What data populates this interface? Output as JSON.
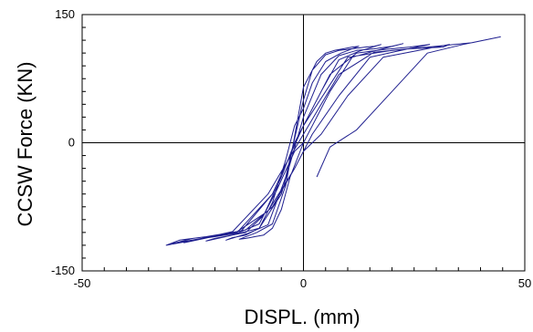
{
  "chart_data": {
    "type": "line",
    "xlabel": "DISPL. (mm)",
    "ylabel": "CCSW Force (KN)",
    "xlim": [
      -50,
      50
    ],
    "ylim": [
      -150,
      150
    ],
    "x_ticks": [
      -50,
      0,
      50
    ],
    "y_ticks": [
      -150,
      0,
      150
    ],
    "x_tick_labels": [
      "-50",
      "0",
      "50"
    ],
    "y_tick_labels": [
      "-150",
      "0",
      "150"
    ],
    "grid": false,
    "zero_lines": true,
    "legend": "none",
    "line_color": "#1f1f8f",
    "series": [
      {
        "x": [
          0,
          -3,
          -5,
          -7,
          -9,
          -11,
          -13,
          -14.5,
          -10.5,
          -7,
          -4,
          0,
          3,
          5,
          7,
          9,
          11,
          12.5,
          8.5,
          5,
          2,
          0,
          -2,
          -4,
          -7,
          -10,
          -13,
          -16,
          -17.5,
          -12.5,
          -8,
          -4,
          0,
          2,
          5,
          8,
          11,
          14,
          16,
          17.5,
          12.5,
          8,
          4,
          0,
          -2,
          -5,
          -9,
          -13,
          -17,
          -20,
          -22,
          -16,
          -10,
          -5,
          0,
          4,
          8,
          12,
          16,
          20,
          22.5,
          16.5,
          11,
          6,
          2,
          0,
          -2,
          -6,
          -10,
          -15,
          -20,
          -24,
          -27,
          -20.5,
          -14,
          -7,
          0,
          6,
          12,
          18,
          24,
          28.5,
          22,
          15,
          8,
          2,
          0,
          -2,
          -7,
          -13,
          -19,
          -25,
          -29.5,
          -23,
          -16,
          -8,
          0,
          8,
          16,
          24,
          31.5,
          33,
          26,
          18,
          10,
          4,
          0,
          -2,
          -8,
          -15,
          -22,
          -28,
          -31,
          -23.5,
          -15,
          -7,
          0,
          10,
          20,
          30,
          38,
          44.5,
          36,
          28,
          20,
          12,
          6,
          3
        ]
      }
    ],
    "series_y": [
      0,
      -40,
      -78,
      -100,
      -108,
      -110,
      -112,
      -113,
      -105,
      -95,
      -50,
      65,
      95,
      105,
      108,
      110,
      112,
      113,
      105,
      95,
      70,
      40,
      20,
      -20,
      -70,
      -100,
      -108,
      -111,
      -114,
      -106,
      -96,
      -40,
      50,
      85,
      103,
      108,
      110,
      112,
      113,
      115,
      107,
      97,
      60,
      20,
      0,
      -40,
      -85,
      -105,
      -109,
      -112,
      -115,
      -108,
      -100,
      -60,
      30,
      80,
      102,
      108,
      110,
      113,
      116,
      108,
      100,
      60,
      20,
      0,
      -10,
      -55,
      -95,
      -106,
      -110,
      -113,
      -117,
      -110,
      -103,
      -60,
      20,
      80,
      105,
      109,
      112,
      115,
      108,
      100,
      55,
      10,
      -10,
      -30,
      -75,
      -102,
      -108,
      -112,
      -118,
      -112,
      -104,
      -60,
      10,
      80,
      106,
      110,
      112,
      115,
      108,
      100,
      55,
      10,
      -10,
      -30,
      -80,
      -104,
      -110,
      -114,
      -120,
      -113,
      -105,
      -60,
      20,
      100,
      108,
      113,
      117,
      124,
      115,
      105,
      60,
      15,
      -5,
      -40
    ]
  }
}
